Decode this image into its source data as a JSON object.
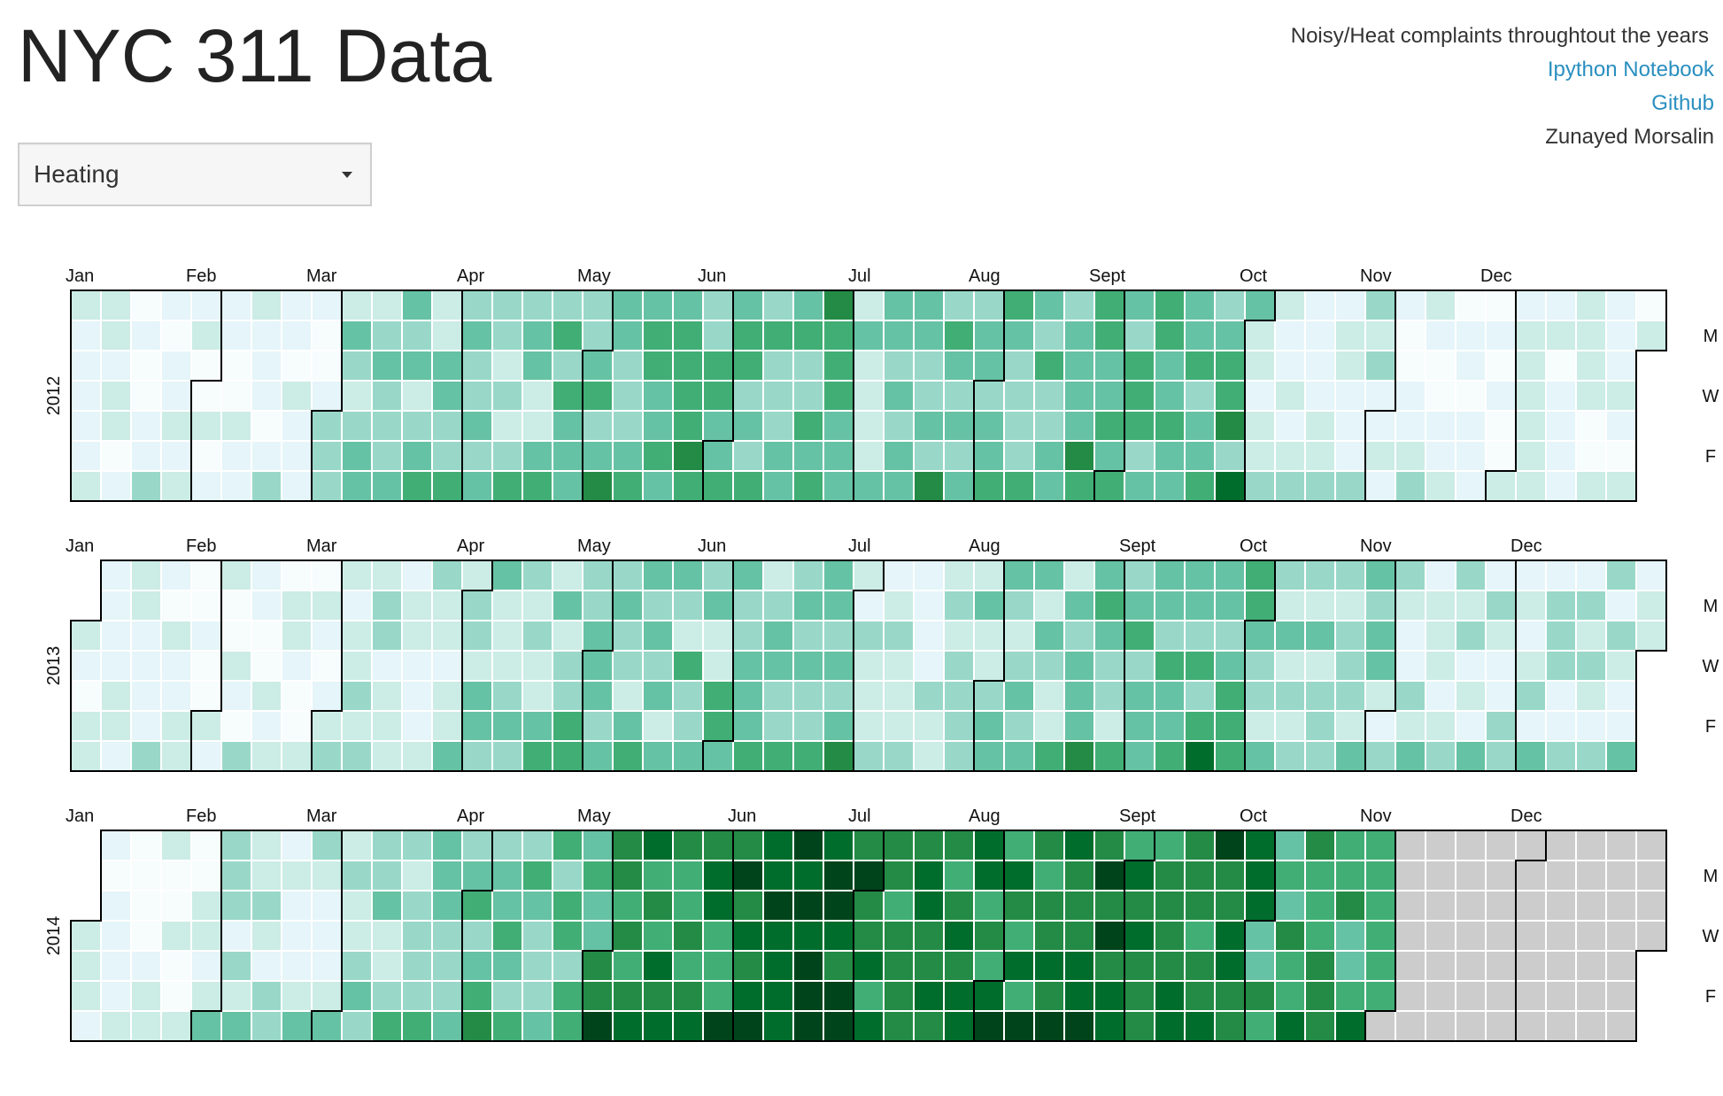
{
  "header": {
    "title": "NYC 311 Data",
    "subtitle": "Noisy/Heat complaints throughtout the years",
    "links": {
      "notebook": "Ipython Notebook",
      "github": "Github"
    },
    "author": "Zunayed Morsalin"
  },
  "controls": {
    "complaint_type": "Heating"
  },
  "chart_data": {
    "type": "heatmap",
    "title": "",
    "years": [
      2012,
      2013,
      2014
    ],
    "month_labels": [
      "Jan",
      "Feb",
      "Mar",
      "Apr",
      "May",
      "Jun",
      "Jul",
      "Aug",
      "Sept",
      "Oct",
      "Nov",
      "Dec"
    ],
    "weekday_labels": {
      "1": "M",
      "3": "W",
      "5": "F"
    },
    "value_scale": {
      "min": 0,
      "max": 8
    },
    "no_data_color": "#cccccc",
    "colors": [
      "#f7fcfd",
      "#e5f5f9",
      "#ccece6",
      "#99d8c9",
      "#66c2a4",
      "#41ae76",
      "#238b45",
      "#006d2c",
      "#00441b"
    ],
    "monthly_levels": {
      "2012": [
        1,
        1,
        3,
        3,
        4,
        4,
        3,
        4,
        4,
        2,
        1,
        1
      ],
      "2013": [
        1,
        1,
        2,
        3,
        3,
        3,
        2,
        3,
        4,
        3,
        2,
        2
      ],
      "2014": [
        1,
        2,
        3,
        4,
        6,
        7,
        6,
        6,
        6,
        5,
        null,
        null
      ]
    },
    "data_through": "2014-10-31"
  }
}
